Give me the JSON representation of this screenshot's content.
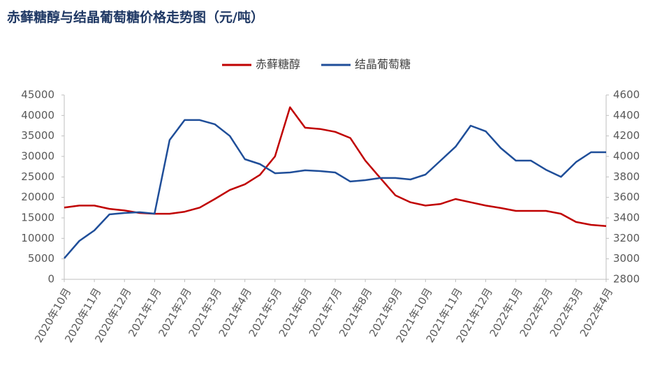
{
  "chart_data": {
    "type": "line",
    "title": "赤藓糖醇与结晶葡萄糖价格走势图（元/吨）",
    "categories": [
      "2020年10月",
      null,
      "2020年11月",
      null,
      "2020年12月",
      null,
      "2021年1月",
      null,
      "2021年2月",
      null,
      "2021年3月",
      null,
      "2021年4月",
      null,
      "2021年5月",
      null,
      "2021年6月",
      null,
      "2021年7月",
      null,
      "2021年8月",
      null,
      "2021年9月",
      null,
      "2021年10月",
      null,
      "2021年11月",
      null,
      "2021年12月",
      null,
      "2022年1月",
      null,
      "2022年2月",
      null,
      "2022年3月",
      null,
      "2022年4月"
    ],
    "series": [
      {
        "name": "赤藓糖醇",
        "color": "#c00000",
        "values": [
          17500,
          18000,
          18000,
          17200,
          16800,
          16200,
          16000,
          16000,
          16500,
          17500,
          19600,
          21800,
          23200,
          25500,
          30000,
          42000,
          37000,
          36700,
          36000,
          34500,
          29000,
          24700,
          20500,
          18800,
          18000,
          18400,
          19600,
          18800,
          18000,
          17400,
          16700,
          16700,
          16700,
          16000,
          14000,
          13300,
          13000
        ]
      },
      {
        "name": "结晶葡萄糖",
        "color": "#1f4e99",
        "axis": "y2",
        "values": [
          3005,
          3175,
          3277,
          3434,
          3448,
          3455,
          3441,
          4160,
          4355,
          4355,
          4314,
          4200,
          3973,
          3925,
          3836,
          3843,
          3864,
          3857,
          3843,
          3755,
          3768,
          3789,
          3789,
          3775,
          3823,
          3959,
          4095,
          4300,
          4245,
          4082,
          3959,
          3959,
          3870,
          3800,
          3945,
          4041,
          4041
        ]
      }
    ],
    "ylim": [
      0,
      45000
    ],
    "yticks": [
      0,
      5000,
      10000,
      15000,
      20000,
      25000,
      30000,
      35000,
      40000,
      45000
    ],
    "y2lim": [
      2800,
      4600
    ],
    "y2ticks": [
      2800,
      3000,
      3200,
      3400,
      3600,
      3800,
      4000,
      4200,
      4400,
      4600
    ],
    "grid": false,
    "legend": "top"
  }
}
